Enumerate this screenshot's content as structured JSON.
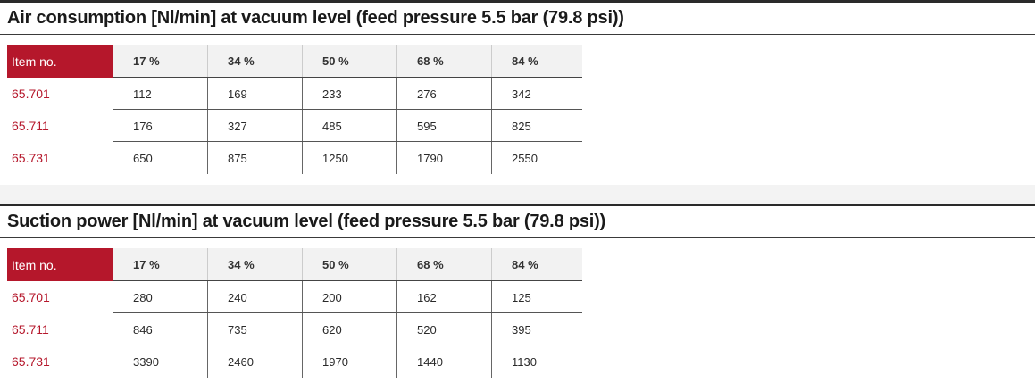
{
  "tables": [
    {
      "title": "Air consumption [Nl/min] at vacuum level (feed pressure 5.5 bar (79.8 psi))",
      "header": [
        "Item no.",
        "17 %",
        "34 %",
        "50 %",
        "68 %",
        "84 %"
      ],
      "rows": [
        [
          "65.701",
          "112",
          "169",
          "233",
          "276",
          "342"
        ],
        [
          "65.711",
          "176",
          "327",
          "485",
          "595",
          "825"
        ],
        [
          "65.731",
          "650",
          "875",
          "1250",
          "1790",
          "2550"
        ]
      ]
    },
    {
      "title": "Suction power [Nl/min] at vacuum level (feed pressure 5.5 bar (79.8 psi))",
      "header": [
        "Item no.",
        "17 %",
        "34 %",
        "50 %",
        "68 %",
        "84 %"
      ],
      "rows": [
        [
          "65.701",
          "280",
          "240",
          "200",
          "162",
          "125"
        ],
        [
          "65.711",
          "846",
          "735",
          "620",
          "520",
          "395"
        ],
        [
          "65.731",
          "3390",
          "2460",
          "1970",
          "1440",
          "1130"
        ]
      ]
    }
  ],
  "colors": {
    "accent": "#b5172b",
    "header_bg": "#f2f2f2",
    "band": "#f3f3f3"
  }
}
